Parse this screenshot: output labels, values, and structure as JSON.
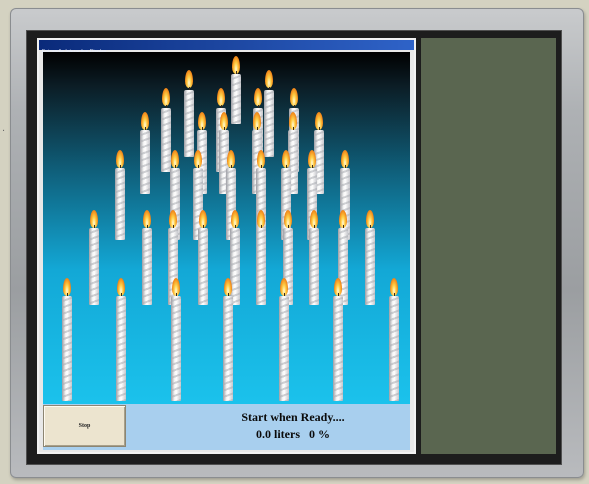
{
  "desktop": {
    "margin_dots": ". . ."
  },
  "window": {
    "title": "Epicandle Interactive Display"
  },
  "scene": {
    "sky_colors": [
      "#000000",
      "#0f5d78",
      "#1bc2ec"
    ],
    "flame_color": "#ffd048",
    "candle_color": "#f4f4f4",
    "candle_count": 38
  },
  "controls": {
    "stop_label": "Stop",
    "status_line1": "Start when Ready....",
    "status_liters": "0.0 liters",
    "status_percent": "0 %"
  },
  "side_panel": {
    "color": "#5a6650"
  }
}
